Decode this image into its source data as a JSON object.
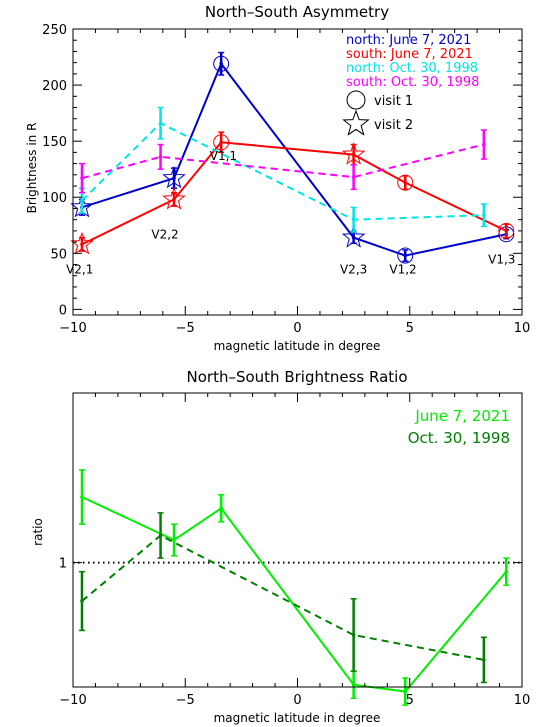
{
  "chart_data": [
    {
      "type": "line",
      "title": "North–South Asymmetry",
      "xlabel": "magnetic latitude in degree",
      "ylabel": "Brightness in R",
      "xlim": [
        -10,
        10
      ],
      "ylim": [
        -5,
        250
      ],
      "x_ticks": [
        -10,
        -5,
        0,
        5,
        10
      ],
      "x_tick_labels": [
        "−10",
        "−5",
        "0",
        "5",
        "10"
      ],
      "y_ticks": [
        0,
        50,
        100,
        150,
        200,
        250
      ],
      "y_tick_labels": [
        "0",
        "50",
        "100",
        "150",
        "200",
        "250"
      ],
      "grid": false,
      "legend_position": "top-right",
      "series": [
        {
          "name": "north: June 7, 2021",
          "color": "#0000cc",
          "dash": "solid",
          "points": [
            {
              "x": -9.6,
              "y": 91,
              "err": 7,
              "marker": "star"
            },
            {
              "x": -5.5,
              "y": 117,
              "err": 9,
              "marker": "star"
            },
            {
              "x": -3.4,
              "y": 219,
              "err": 10,
              "marker": "circle"
            },
            {
              "x": 2.5,
              "y": 64,
              "err": 5,
              "marker": "star"
            },
            {
              "x": 4.8,
              "y": 48,
              "err": 5,
              "marker": "circle"
            },
            {
              "x": 9.3,
              "y": 67,
              "err": 4,
              "marker": "circle"
            }
          ]
        },
        {
          "name": "south: June 7, 2021",
          "color": "#ff0000",
          "dash": "solid",
          "points": [
            {
              "x": -9.6,
              "y": 58,
              "err": 6,
              "marker": "star"
            },
            {
              "x": -5.5,
              "y": 98,
              "err": 6,
              "marker": "star"
            },
            {
              "x": -3.4,
              "y": 149,
              "err": 9,
              "marker": "circle"
            },
            {
              "x": 2.5,
              "y": 138,
              "err": 9,
              "marker": "star"
            },
            {
              "x": 4.8,
              "y": 113,
              "err": 6,
              "marker": "circle"
            },
            {
              "x": 9.3,
              "y": 70,
              "err": 6,
              "marker": "circle"
            }
          ]
        },
        {
          "name": "north: Oct. 30, 1998",
          "color": "#00e5e5",
          "dash": "dashed",
          "points": [
            {
              "x": -9.6,
              "y": 97,
              "err": 11
            },
            {
              "x": -6.1,
              "y": 166,
              "err": 14
            },
            {
              "x": 2.5,
              "y": 80,
              "err": 11
            },
            {
              "x": 8.3,
              "y": 84,
              "err": 10
            }
          ]
        },
        {
          "name": "south: Oct. 30, 1998",
          "color": "#ff00ff",
          "dash": "dashed",
          "points": [
            {
              "x": -9.6,
              "y": 117,
              "err": 13
            },
            {
              "x": -6.1,
              "y": 136,
              "err": 11
            },
            {
              "x": 2.5,
              "y": 118,
              "err": 11
            },
            {
              "x": 8.3,
              "y": 147,
              "err": 13
            }
          ]
        }
      ],
      "marker_legend": [
        {
          "marker": "circle",
          "label": "visit 1"
        },
        {
          "marker": "star",
          "label": "visit 2"
        }
      ],
      "annotations": [
        {
          "text": "V2,1",
          "x": -9.7,
          "y": 32
        },
        {
          "text": "V2,2",
          "x": -5.9,
          "y": 63
        },
        {
          "text": "V1,1",
          "x": -3.3,
          "y": 133
        },
        {
          "text": "V2,3",
          "x": 2.5,
          "y": 32
        },
        {
          "text": "V1,2",
          "x": 4.7,
          "y": 32
        },
        {
          "text": "V1,3",
          "x": 9.1,
          "y": 41
        }
      ]
    },
    {
      "type": "line",
      "title": "North–South Brightness Ratio",
      "xlabel": "magnetic latitude in degree",
      "ylabel": "ratio",
      "xlim": [
        -10,
        10
      ],
      "ylim": [
        0.45,
        1.75
      ],
      "x_ticks": [
        -10,
        -5,
        0,
        5,
        10
      ],
      "x_tick_labels": [
        "−10",
        "−5",
        "0",
        "5",
        "10"
      ],
      "y_ticks": [
        1
      ],
      "y_tick_labels": [
        "1"
      ],
      "grid": false,
      "legend_position": "top-right",
      "reference_line": {
        "y": 1,
        "style": "dotted",
        "color": "#000000"
      },
      "series": [
        {
          "name": "June 7, 2021",
          "color": "#00ee00",
          "dash": "solid",
          "points": [
            {
              "x": -9.6,
              "y": 1.29,
              "err": 0.12
            },
            {
              "x": -5.5,
              "y": 1.1,
              "err": 0.07
            },
            {
              "x": -3.4,
              "y": 1.24,
              "err": 0.06
            },
            {
              "x": 2.5,
              "y": 0.46,
              "err": 0.06
            },
            {
              "x": 4.8,
              "y": 0.43,
              "err": 0.06
            },
            {
              "x": 9.3,
              "y": 0.96,
              "err": 0.06
            }
          ]
        },
        {
          "name": "Oct. 30, 1998",
          "color": "#008000",
          "dash": "dashed",
          "points": [
            {
              "x": -9.6,
              "y": 0.83,
              "err": 0.13
            },
            {
              "x": -6.1,
              "y": 1.12,
              "err": 0.1
            },
            {
              "x": 2.5,
              "y": 0.68,
              "err": 0.16
            },
            {
              "x": 8.3,
              "y": 0.57,
              "err": 0.1
            }
          ]
        }
      ]
    }
  ]
}
